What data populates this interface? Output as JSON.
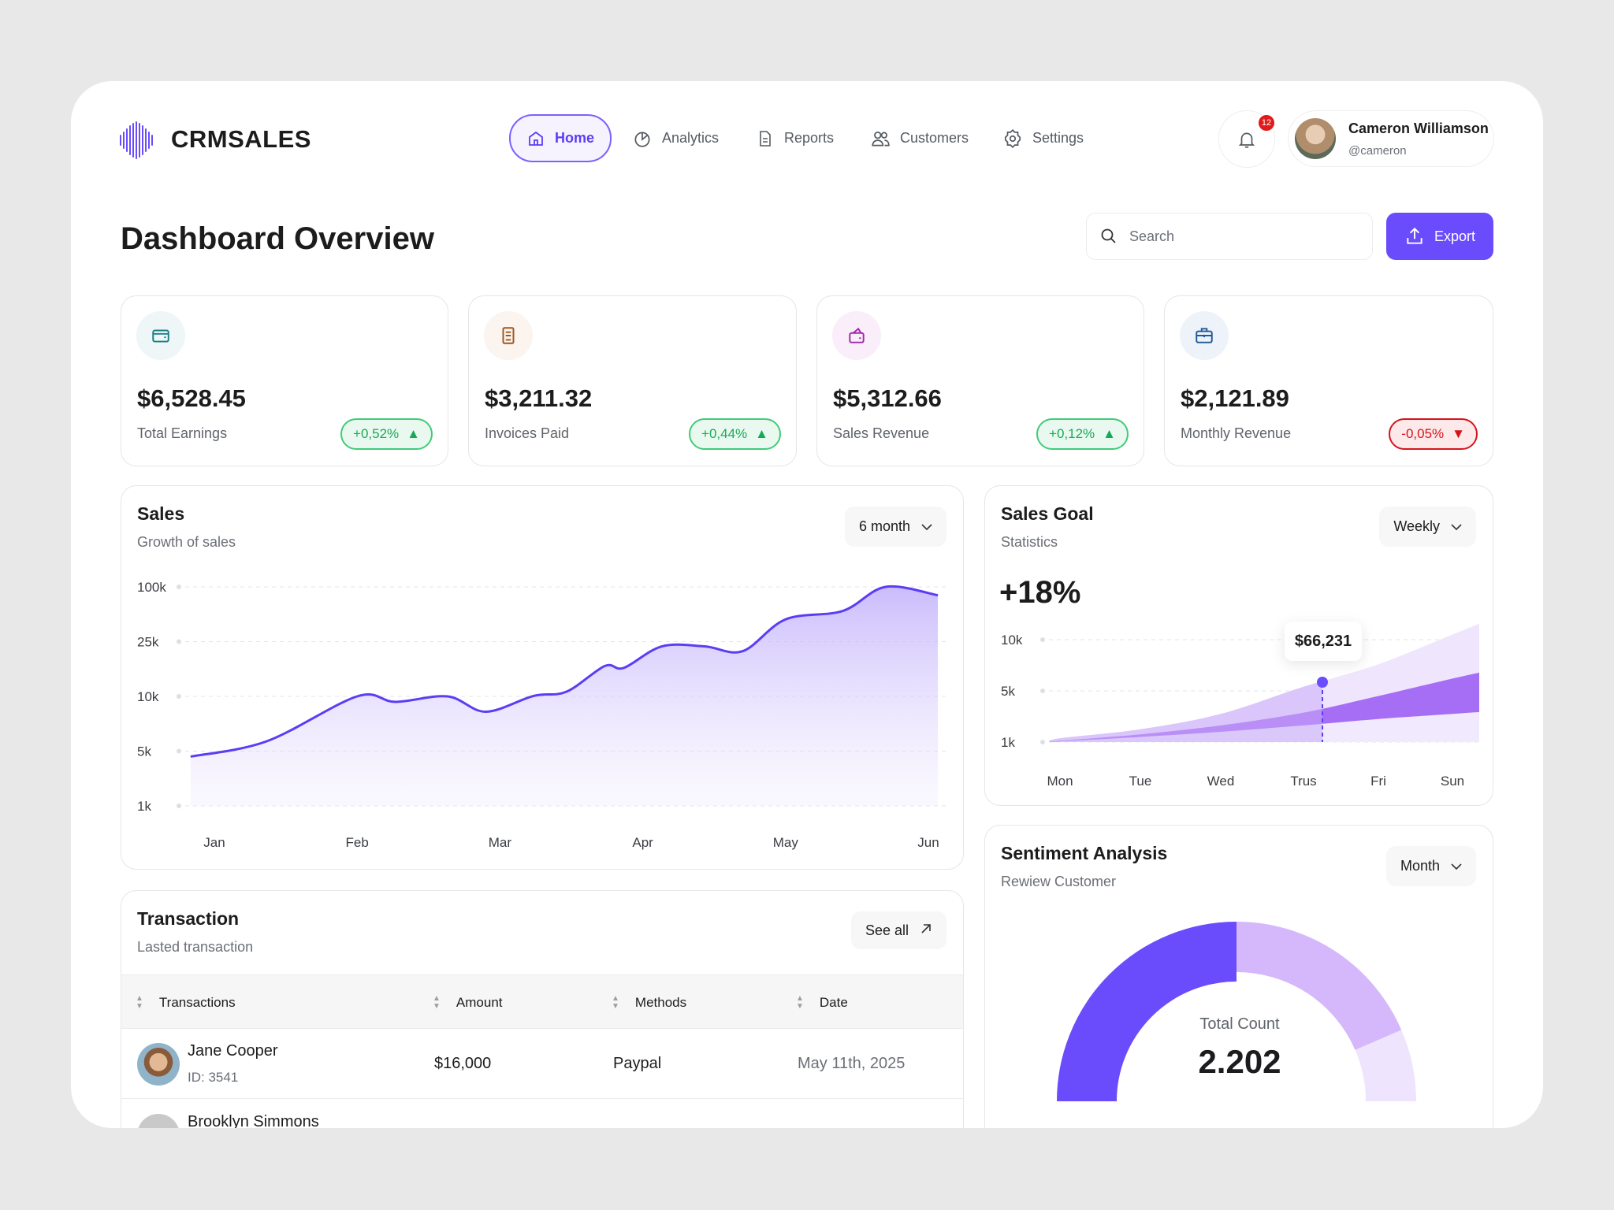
{
  "brand": {
    "name": "CRMSALES",
    "color": "#6a4cfc"
  },
  "nav": [
    {
      "label": "Home",
      "icon": "home-icon",
      "active": true
    },
    {
      "label": "Analytics",
      "icon": "pie-chart-icon"
    },
    {
      "label": "Reports",
      "icon": "document-icon"
    },
    {
      "label": "Customers",
      "icon": "users-icon"
    },
    {
      "label": "Settings",
      "icon": "gear-icon"
    }
  ],
  "notifications": {
    "count": "12"
  },
  "user": {
    "name": "Cameron Williamson",
    "handle": "@cameron"
  },
  "page": {
    "title": "Dashboard Overview",
    "search_placeholder": "Search",
    "export_label": "Export"
  },
  "stats": [
    {
      "value": "$6,528.45",
      "label": "Total Earnings",
      "change": "+0,52%",
      "direction": "up",
      "icon": "wallet-icon",
      "color": "#1a7f86"
    },
    {
      "value": "$3,211.32",
      "label": "Invoices Paid",
      "change": "+0,44%",
      "direction": "up",
      "icon": "invoice-icon",
      "color": "#a0561a"
    },
    {
      "value": "$5,312.66",
      "label": "Sales Revenue",
      "change": "+0,12%",
      "direction": "up",
      "icon": "wallet-open-icon",
      "color": "#a02aa8"
    },
    {
      "value": "$2,121.89",
      "label": "Monthly Revenue",
      "change": "-0,05%",
      "direction": "down",
      "icon": "briefcase-icon",
      "color": "#1d5b9a"
    }
  ],
  "sales": {
    "title": "Sales",
    "subtitle": "Growth of sales",
    "period": "6 month"
  },
  "sales_goal": {
    "title": "Sales Goal",
    "subtitle": "Statistics",
    "period": "Weekly",
    "change": "+18%",
    "tooltip": "$66,231"
  },
  "sentiment": {
    "title": "Sentiment Analysis",
    "subtitle": "Rewiew Customer",
    "period": "Month",
    "center_label": "Total Count",
    "center_value": "2.202"
  },
  "transactions": {
    "title": "Transaction",
    "subtitle": "Lasted transaction",
    "see_all": "See all",
    "columns": [
      "Transactions",
      "Amount",
      "Methods",
      "Date"
    ],
    "rows": [
      {
        "name": "Jane Cooper",
        "id": "ID: 3541",
        "amount": "$16,000",
        "method": "Paypal",
        "date": "May 11th, 2025"
      },
      {
        "name": "Brooklyn Simmons"
      }
    ]
  },
  "chart_data": [
    {
      "type": "area",
      "yscale": "categorical-ticks",
      "y_ticks": [
        "1k",
        "5k",
        "10k",
        "25k",
        "100k"
      ],
      "y_tick_values": [
        1,
        5,
        10,
        25,
        100
      ],
      "x_ticks": [
        "Jan",
        "Feb",
        "Mar",
        "Apr",
        "May",
        "Jun"
      ],
      "grid": true,
      "color": "#5b3df5",
      "points": [
        {
          "x": "Dec 26",
          "y": 4.6
        },
        {
          "x": "Jan 12",
          "y": 5.9
        },
        {
          "x": "Feb 1",
          "y": 10
        },
        {
          "x": "Feb 9",
          "y": 9.5
        },
        {
          "x": "Feb 20",
          "y": 10
        },
        {
          "x": "Feb 28",
          "y": 8.6
        },
        {
          "x": "Mar 8",
          "y": 10.1
        },
        {
          "x": "Mar 15",
          "y": 11.3
        },
        {
          "x": "Mar 23",
          "y": 18.3
        },
        {
          "x": "Mar 27",
          "y": 17.8
        },
        {
          "x": "Apr 5",
          "y": 23.7
        },
        {
          "x": "Apr 14",
          "y": 23.7
        },
        {
          "x": "Apr 22",
          "y": 22.4
        },
        {
          "x": "May 1",
          "y": 55.5
        },
        {
          "x": "May 13",
          "y": 67
        },
        {
          "x": "May 22",
          "y": 100
        },
        {
          "x": "Jun 3",
          "y": 88.5
        }
      ]
    },
    {
      "type": "area",
      "y_ticks": [
        "1k",
        "5k",
        "10k"
      ],
      "y_tick_values": [
        1,
        5,
        10
      ],
      "categories": [
        "Mon",
        "Tue",
        "Wed",
        "Trus",
        "Fri",
        "Sun"
      ],
      "grid": true,
      "highlight": {
        "category": "Trus",
        "label": "$66,231"
      },
      "series": [
        {
          "values": [
            1.3,
            2.0,
            3.2,
            5.4,
            7.6,
            10.5
          ],
          "color": "#d9c6fb"
        },
        {
          "values": [
            1.1,
            1.6,
            2.3,
            3.3,
            4.6,
            6.2
          ],
          "color": "#a66ef5"
        },
        {
          "values": [
            1.05,
            1.4,
            1.8,
            2.3,
            2.8,
            3.2
          ],
          "color": "#e8dcfd"
        }
      ]
    },
    {
      "type": "pie",
      "variant": "semicircle-gauge",
      "slices": [
        {
          "value": 50,
          "color": "#6a4cfc"
        },
        {
          "value": 37,
          "color": "#d5b8fb"
        },
        {
          "value": 13,
          "color": "#efe4fd"
        }
      ]
    }
  ]
}
